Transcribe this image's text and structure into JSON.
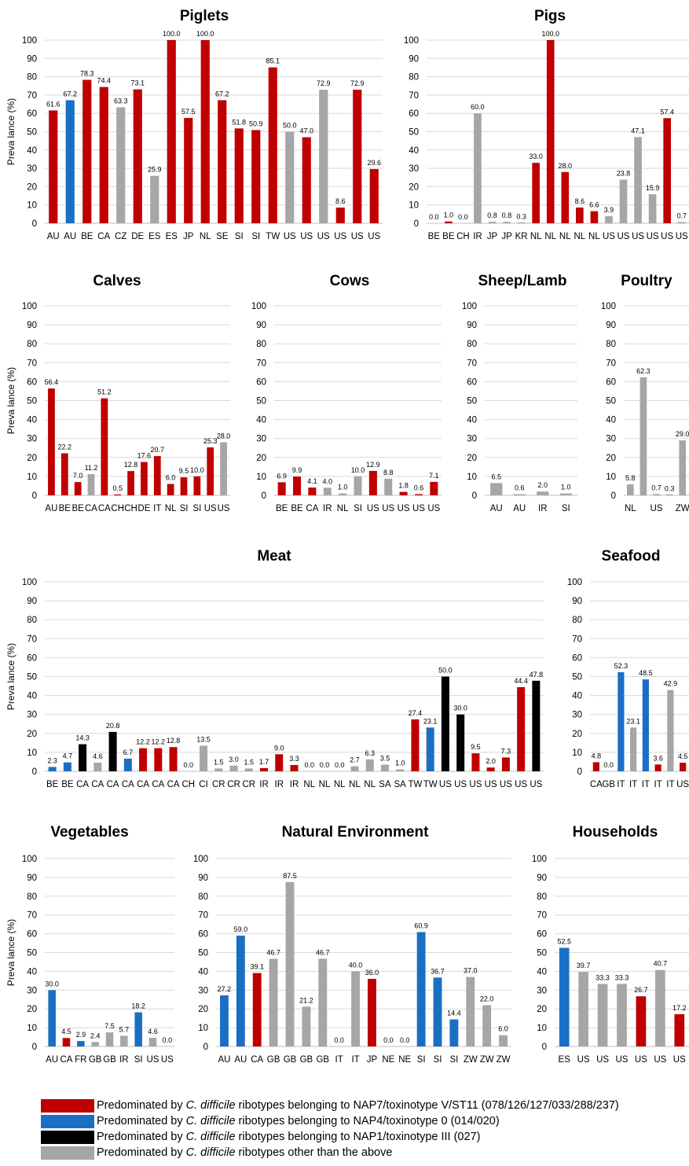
{
  "colors": {
    "red": "#c00000",
    "blue": "#1a6fc4",
    "black": "#000000",
    "gray": "#a6a6a6",
    "gridline": "#d9d9d9"
  },
  "y_axis_label": "Preva lance (%)",
  "chart_data": [
    {
      "type": "bar",
      "title": "Piglets",
      "ylim": [
        0,
        100
      ],
      "yticks": [
        0,
        10,
        20,
        30,
        40,
        50,
        60,
        70,
        80,
        90,
        100
      ],
      "ylabel": "Preva lance (%)",
      "categories": [
        "AU",
        "AU",
        "BE",
        "CA",
        "CZ",
        "DE",
        "ES",
        "ES",
        "JP",
        "NL",
        "SE",
        "SI",
        "SI",
        "TW",
        "US",
        "US",
        "US",
        "US",
        "US",
        "US"
      ],
      "values": [
        61.6,
        67.2,
        78.3,
        74.4,
        63.3,
        73.1,
        25.9,
        100.0,
        57.5,
        100.0,
        67.2,
        51.8,
        50.9,
        85.1,
        50.0,
        47.0,
        72.9,
        8.6,
        72.9,
        29.6
      ],
      "colors": [
        "red",
        "blue",
        "red",
        "red",
        "gray",
        "red",
        "gray",
        "red",
        "red",
        "red",
        "red",
        "red",
        "red",
        "red",
        "gray",
        "red",
        "gray",
        "red",
        "red",
        "red"
      ]
    },
    {
      "type": "bar",
      "title": "Pigs",
      "ylim": [
        0,
        100
      ],
      "yticks": [
        0,
        10,
        20,
        30,
        40,
        50,
        60,
        70,
        80,
        90,
        100
      ],
      "ylabel": "",
      "categories": [
        "BE",
        "BE",
        "CH",
        "IR",
        "JP",
        "JP",
        "KR",
        "NL",
        "NL",
        "NL",
        "NL",
        "NL",
        "US",
        "US",
        "US",
        "US",
        "US",
        "US"
      ],
      "values": [
        0.0,
        1.0,
        0.0,
        60.0,
        0.8,
        0.8,
        0.3,
        33.0,
        100.0,
        28.0,
        8.6,
        6.6,
        3.9,
        23.8,
        47.1,
        15.9,
        57.4,
        0.7
      ],
      "colors": [
        "red",
        "red",
        "red",
        "gray",
        "gray",
        "gray",
        "gray",
        "red",
        "red",
        "red",
        "red",
        "red",
        "gray",
        "gray",
        "gray",
        "gray",
        "red",
        "gray"
      ]
    },
    {
      "type": "bar",
      "title": "Calves",
      "ylim": [
        0,
        100
      ],
      "yticks": [
        0,
        10,
        20,
        30,
        40,
        50,
        60,
        70,
        80,
        90,
        100
      ],
      "ylabel": "Preva lance (%)",
      "categories": [
        "AU",
        "BE",
        "BE",
        "CA",
        "CA",
        "CH",
        "CH",
        "DE",
        "IT",
        "NL",
        "SI",
        "SI",
        "US",
        "US"
      ],
      "values": [
        56.4,
        22.2,
        7.0,
        11.2,
        51.2,
        0.5,
        12.8,
        17.6,
        20.7,
        6.0,
        9.5,
        10.0,
        25.3,
        28.0
      ],
      "colors": [
        "red",
        "red",
        "red",
        "gray",
        "red",
        "red",
        "red",
        "red",
        "red",
        "red",
        "red",
        "red",
        "red",
        "gray"
      ]
    },
    {
      "type": "bar",
      "title": "Cows",
      "ylim": [
        0,
        100
      ],
      "yticks": [
        0,
        10,
        20,
        30,
        40,
        50,
        60,
        70,
        80,
        90,
        100
      ],
      "ylabel": "",
      "categories": [
        "BE",
        "BE",
        "CA",
        "IR",
        "NL",
        "SI",
        "US",
        "US",
        "US",
        "US",
        "US"
      ],
      "values": [
        6.9,
        9.9,
        4.1,
        4.0,
        1.0,
        10.0,
        12.9,
        8.8,
        1.8,
        0.6,
        7.1
      ],
      "colors": [
        "red",
        "red",
        "red",
        "gray",
        "gray",
        "gray",
        "red",
        "gray",
        "red",
        "red",
        "red"
      ]
    },
    {
      "type": "bar",
      "title": "Sheep/Lamb",
      "ylim": [
        0,
        100
      ],
      "yticks": [
        0,
        10,
        20,
        30,
        40,
        50,
        60,
        70,
        80,
        90,
        100
      ],
      "ylabel": "",
      "categories": [
        "AU",
        "AU",
        "IR",
        "SI"
      ],
      "values": [
        6.5,
        0.6,
        2.0,
        1.0
      ],
      "colors": [
        "gray",
        "gray",
        "gray",
        "gray"
      ]
    },
    {
      "type": "bar",
      "title": "Poultry",
      "ylim": [
        0,
        100
      ],
      "yticks": [
        0,
        10,
        20,
        30,
        40,
        50,
        60,
        70,
        80,
        90,
        100
      ],
      "ylabel": "",
      "categories": [
        "NL",
        "",
        "US",
        "",
        "ZW"
      ],
      "values": [
        5.8,
        62.3,
        0.7,
        0.3,
        29.0
      ],
      "colors": [
        "gray",
        "gray",
        "gray",
        "gray",
        "gray"
      ]
    },
    {
      "type": "bar",
      "title": "Meat",
      "ylim": [
        0,
        100
      ],
      "yticks": [
        0,
        10,
        20,
        30,
        40,
        50,
        60,
        70,
        80,
        90,
        100
      ],
      "ylabel": "Preva lance (%)",
      "categories": [
        "BE",
        "BE",
        "CA",
        "CA",
        "CA",
        "CA",
        "CA",
        "CA",
        "CA",
        "CH",
        "CI",
        "CR",
        "CR",
        "CR",
        "IR",
        "IR",
        "IR",
        "NL",
        "NL",
        "NL",
        "NL",
        "NL",
        "SA",
        "SA",
        "TW",
        "TW",
        "US",
        "US",
        "US",
        "US",
        "US",
        "US",
        "US"
      ],
      "values": [
        2.3,
        4.7,
        14.3,
        4.6,
        20.8,
        6.7,
        12.2,
        12.2,
        12.8,
        0.0,
        13.5,
        1.5,
        3.0,
        1.5,
        1.7,
        9.0,
        3.3,
        0.0,
        0.0,
        0.0,
        2.7,
        6.3,
        3.5,
        1.0,
        27.4,
        23.1,
        50.0,
        30.0,
        9.5,
        2.0,
        7.3,
        44.4,
        47.8
      ],
      "colors": [
        "blue",
        "blue",
        "black",
        "gray",
        "black",
        "blue",
        "red",
        "red",
        "red",
        "gray",
        "gray",
        "gray",
        "gray",
        "gray",
        "red",
        "red",
        "red",
        "gray",
        "gray",
        "gray",
        "gray",
        "gray",
        "gray",
        "gray",
        "red",
        "blue",
        "black",
        "black",
        "red",
        "red",
        "red",
        "red",
        "black"
      ]
    },
    {
      "type": "bar",
      "title": "Seafood",
      "ylim": [
        0,
        100
      ],
      "yticks": [
        0,
        10,
        20,
        30,
        40,
        50,
        60,
        70,
        80,
        90,
        100
      ],
      "ylabel": "",
      "categories": [
        "CA",
        "GB",
        "IT",
        "IT",
        "IT",
        "IT",
        "IT",
        "US"
      ],
      "values": [
        4.8,
        0.0,
        52.3,
        23.1,
        48.5,
        3.6,
        42.9,
        4.5
      ],
      "colors": [
        "red",
        "red",
        "blue",
        "gray",
        "blue",
        "red",
        "gray",
        "red"
      ]
    },
    {
      "type": "bar",
      "title": "Vegetables",
      "ylim": [
        0,
        100
      ],
      "yticks": [
        0,
        10,
        20,
        30,
        40,
        50,
        60,
        70,
        80,
        90,
        100
      ],
      "ylabel": "Preva lance (%)",
      "categories": [
        "AU",
        "CA",
        "FR",
        "GB",
        "GB",
        "IR",
        "SI",
        "US",
        "US"
      ],
      "values": [
        30.0,
        4.5,
        2.9,
        2.4,
        7.5,
        5.7,
        18.2,
        4.6,
        0.0
      ],
      "colors": [
        "blue",
        "red",
        "blue",
        "gray",
        "gray",
        "gray",
        "blue",
        "gray",
        "gray"
      ]
    },
    {
      "type": "bar",
      "title": "Natural Environment",
      "ylim": [
        0,
        100
      ],
      "yticks": [
        0,
        10,
        20,
        30,
        40,
        50,
        60,
        70,
        80,
        90,
        100
      ],
      "ylabel": "",
      "categories": [
        "AU",
        "AU",
        "CA",
        "GB",
        "GB",
        "GB",
        "GB",
        "IT",
        "IT",
        "JP",
        "NE",
        "NE",
        "SI",
        "SI",
        "SI",
        "ZW",
        "ZW",
        "ZW"
      ],
      "values": [
        27.2,
        59.0,
        39.1,
        46.7,
        87.5,
        21.2,
        46.7,
        0.0,
        40.0,
        36.0,
        0.0,
        0.0,
        60.9,
        36.7,
        14.4,
        37.0,
        22.0,
        6.0
      ],
      "colors": [
        "blue",
        "blue",
        "red",
        "gray",
        "gray",
        "gray",
        "gray",
        "gray",
        "gray",
        "red",
        "gray",
        "gray",
        "blue",
        "blue",
        "blue",
        "gray",
        "gray",
        "gray"
      ]
    },
    {
      "type": "bar",
      "title": "Households",
      "ylim": [
        0,
        100
      ],
      "yticks": [
        0,
        10,
        20,
        30,
        40,
        50,
        60,
        70,
        80,
        90,
        100
      ],
      "ylabel": "",
      "categories": [
        "ES",
        "US",
        "US",
        "US",
        "US",
        "US",
        "US"
      ],
      "values": [
        52.5,
        39.7,
        33.3,
        33.3,
        26.7,
        40.7,
        17.2
      ],
      "colors": [
        "blue",
        "gray",
        "gray",
        "gray",
        "red",
        "gray",
        "red"
      ]
    }
  ],
  "legend": [
    {
      "color": "red",
      "prefix": "Predominated by ",
      "italic": "C. difficile",
      "suffix": " ribotypes belonging to NAP7/toxinotype V/ST11 (078/126/127/033/288/237)"
    },
    {
      "color": "blue",
      "prefix": "Predominated by ",
      "italic": "C. difficile",
      "suffix": " ribotypes belonging to NAP4/toxinotype 0 (014/020)"
    },
    {
      "color": "black",
      "prefix": "Predominated by ",
      "italic": "C. difficile",
      "suffix": " ribotypes belonging to NAP1/toxinotype III (027)"
    },
    {
      "color": "gray",
      "prefix": "Predominated by ",
      "italic": "C. difficile",
      "suffix": " ribotypes other than the above"
    }
  ]
}
